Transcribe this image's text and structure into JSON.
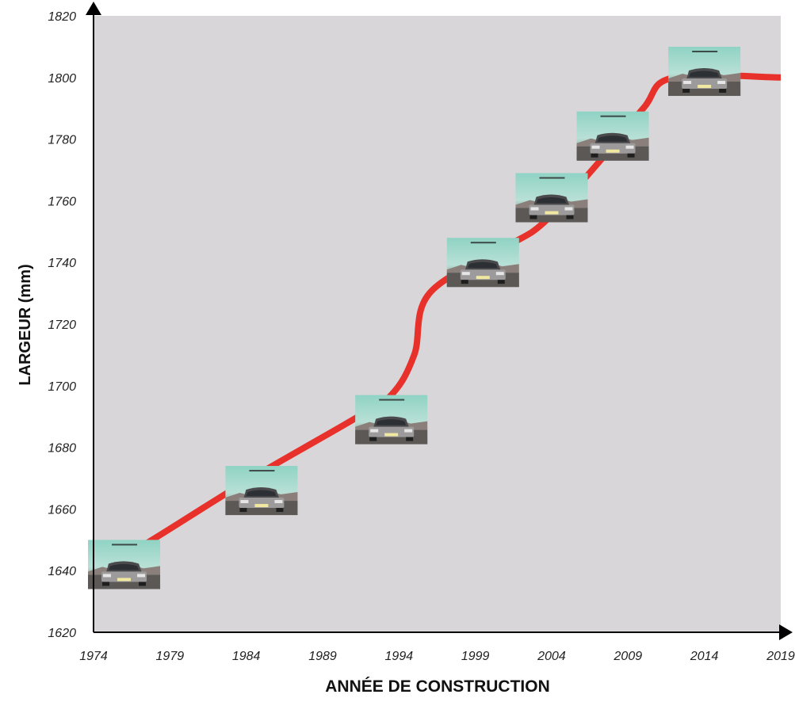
{
  "colors": {
    "plot_background": "#d8d6d8",
    "line": "#e8312a",
    "axis": "#000000",
    "top_fragment": "#1a73c8"
  },
  "top_fragment_text": "",
  "chart_data": {
    "type": "line",
    "title": "",
    "xlabel": "ANNÉE DE CONSTRUCTION",
    "ylabel": "LARGEUR (mm)",
    "xlim": [
      1974,
      2019
    ],
    "ylim": [
      1620,
      1820
    ],
    "xticks": [
      "1974",
      "1979",
      "1984",
      "1989",
      "1994",
      "1999",
      "2004",
      "2009",
      "2014",
      "2019"
    ],
    "yticks": [
      "1620",
      "1640",
      "1660",
      "1680",
      "1700",
      "1720",
      "1740",
      "1760",
      "1780",
      "1800",
      "1820"
    ],
    "grid": false,
    "legend": "none",
    "series": [
      {
        "x": [
          1974,
          1976.5,
          1984,
          1991,
          1993.5,
          1995,
          1996,
          2001,
          2003.5,
          2007,
          2010,
          2012,
          2019
        ],
        "values": [
          1641,
          1646,
          1669,
          1689,
          1697,
          1710,
          1730,
          1745,
          1753,
          1772,
          1790,
          1800,
          1800
        ]
      }
    ],
    "annotations": [
      {
        "type": "car-photo",
        "name": "golf-1",
        "x": 1976,
        "y": 1642
      },
      {
        "type": "car-photo",
        "name": "golf-2",
        "x": 1985,
        "y": 1666
      },
      {
        "type": "car-photo",
        "name": "golf-3",
        "x": 1993.5,
        "y": 1689
      },
      {
        "type": "car-photo",
        "name": "golf-4",
        "x": 1999.5,
        "y": 1740
      },
      {
        "type": "car-photo",
        "name": "golf-5",
        "x": 2004,
        "y": 1761
      },
      {
        "type": "car-photo",
        "name": "golf-6",
        "x": 2008,
        "y": 1781
      },
      {
        "type": "car-photo",
        "name": "golf-7",
        "x": 2014,
        "y": 1802
      }
    ]
  }
}
